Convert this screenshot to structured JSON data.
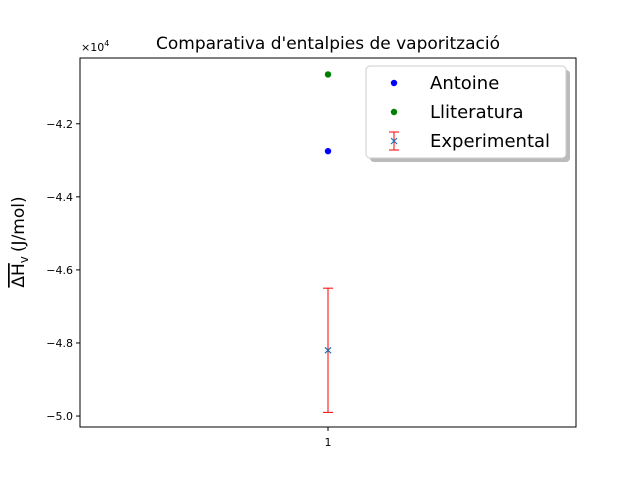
{
  "chart_data": {
    "type": "scatter",
    "title": "Comparativa d'entalpies de vaporització",
    "ylabel_main": "ΔH",
    "ylabel_sub": "v",
    "ylabel_unit": "(J/mol)",
    "y_offset_label": "×10",
    "y_offset_exp": "4",
    "categories": [
      "1"
    ],
    "xlim": [
      0.5,
      1.5
    ],
    "ylim": [
      -5.03,
      -4.02
    ],
    "yticks": [
      -5.0,
      -4.8,
      -4.6,
      -4.4,
      -4.2
    ],
    "ytick_labels": [
      "−5.0",
      "−4.8",
      "−4.6",
      "−4.4",
      "−4.2"
    ],
    "series": [
      {
        "name": "Antoine",
        "color": "#0000ff",
        "marker": "circle",
        "x": 1,
        "y": -4.275
      },
      {
        "name": "Lliteratura",
        "color": "#008000",
        "marker": "circle",
        "x": 1,
        "y": -4.065
      },
      {
        "name": "Experimental",
        "color": "#1f77b4",
        "err_color": "#ff0000",
        "marker": "x",
        "x": 1,
        "y": -4.82,
        "yerr_low": -4.99,
        "yerr_high": -4.65
      }
    ],
    "legend_placement": "top-right",
    "grid": false
  }
}
